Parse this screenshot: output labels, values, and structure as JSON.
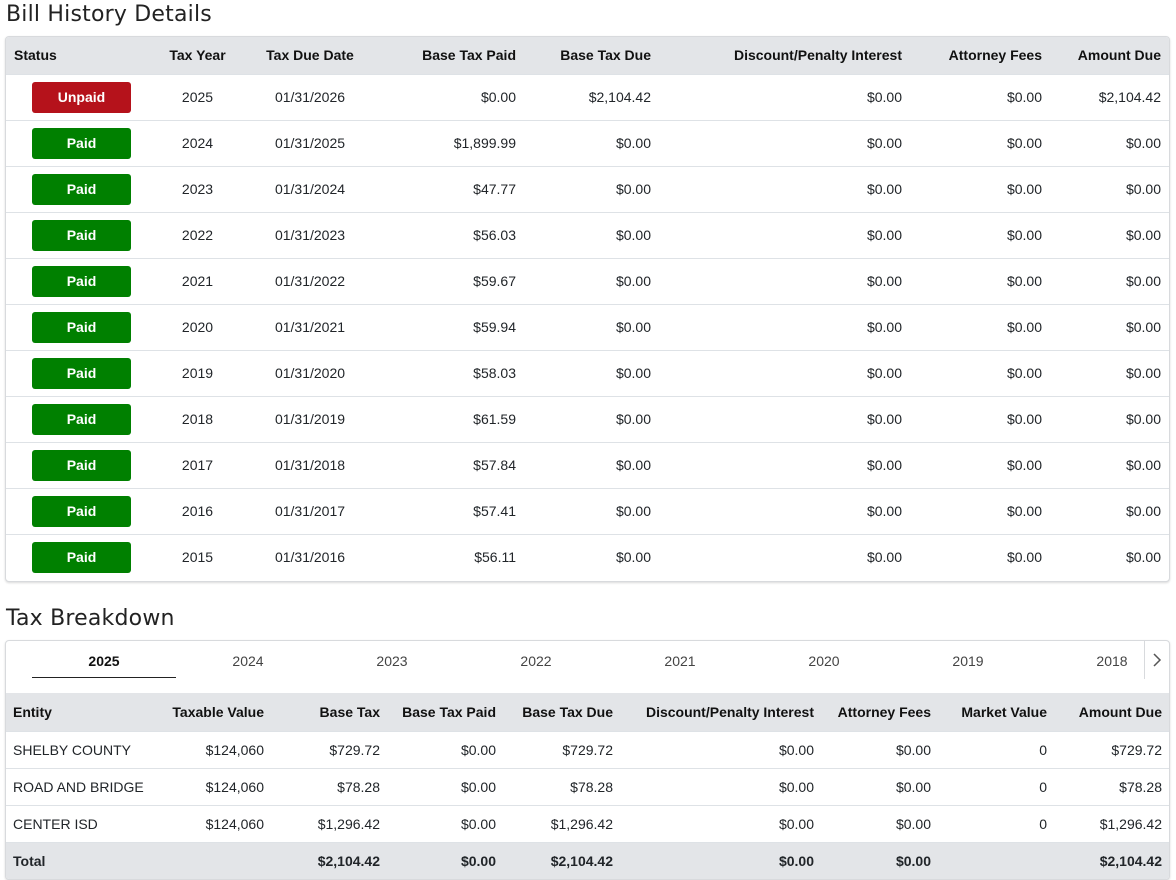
{
  "bill_history": {
    "title": "Bill History Details",
    "columns": [
      "Status",
      "Tax Year",
      "Tax Due Date",
      "Base Tax Paid",
      "Base Tax Due",
      "Discount/Penalty Interest",
      "Attorney Fees",
      "Amount Due"
    ],
    "rows": [
      {
        "status": "Unpaid",
        "state": "unpaid",
        "year": "2025",
        "due_date": "01/31/2026",
        "base_paid": "$0.00",
        "base_due": "$2,104.42",
        "discount": "$0.00",
        "attorney": "$0.00",
        "amount_due": "$2,104.42"
      },
      {
        "status": "Paid",
        "state": "paid",
        "year": "2024",
        "due_date": "01/31/2025",
        "base_paid": "$1,899.99",
        "base_due": "$0.00",
        "discount": "$0.00",
        "attorney": "$0.00",
        "amount_due": "$0.00"
      },
      {
        "status": "Paid",
        "state": "paid",
        "year": "2023",
        "due_date": "01/31/2024",
        "base_paid": "$47.77",
        "base_due": "$0.00",
        "discount": "$0.00",
        "attorney": "$0.00",
        "amount_due": "$0.00"
      },
      {
        "status": "Paid",
        "state": "paid",
        "year": "2022",
        "due_date": "01/31/2023",
        "base_paid": "$56.03",
        "base_due": "$0.00",
        "discount": "$0.00",
        "attorney": "$0.00",
        "amount_due": "$0.00"
      },
      {
        "status": "Paid",
        "state": "paid",
        "year": "2021",
        "due_date": "01/31/2022",
        "base_paid": "$59.67",
        "base_due": "$0.00",
        "discount": "$0.00",
        "attorney": "$0.00",
        "amount_due": "$0.00"
      },
      {
        "status": "Paid",
        "state": "paid",
        "year": "2020",
        "due_date": "01/31/2021",
        "base_paid": "$59.94",
        "base_due": "$0.00",
        "discount": "$0.00",
        "attorney": "$0.00",
        "amount_due": "$0.00"
      },
      {
        "status": "Paid",
        "state": "paid",
        "year": "2019",
        "due_date": "01/31/2020",
        "base_paid": "$58.03",
        "base_due": "$0.00",
        "discount": "$0.00",
        "attorney": "$0.00",
        "amount_due": "$0.00"
      },
      {
        "status": "Paid",
        "state": "paid",
        "year": "2018",
        "due_date": "01/31/2019",
        "base_paid": "$61.59",
        "base_due": "$0.00",
        "discount": "$0.00",
        "attorney": "$0.00",
        "amount_due": "$0.00"
      },
      {
        "status": "Paid",
        "state": "paid",
        "year": "2017",
        "due_date": "01/31/2018",
        "base_paid": "$57.84",
        "base_due": "$0.00",
        "discount": "$0.00",
        "attorney": "$0.00",
        "amount_due": "$0.00"
      },
      {
        "status": "Paid",
        "state": "paid",
        "year": "2016",
        "due_date": "01/31/2017",
        "base_paid": "$57.41",
        "base_due": "$0.00",
        "discount": "$0.00",
        "attorney": "$0.00",
        "amount_due": "$0.00"
      },
      {
        "status": "Paid",
        "state": "paid",
        "year": "2015",
        "due_date": "01/31/2016",
        "base_paid": "$56.11",
        "base_due": "$0.00",
        "discount": "$0.00",
        "attorney": "$0.00",
        "amount_due": "$0.00"
      }
    ]
  },
  "tax_breakdown": {
    "title": "Tax Breakdown",
    "tabs": [
      "2025",
      "2024",
      "2023",
      "2022",
      "2021",
      "2020",
      "2019",
      "2018"
    ],
    "active_tab": "2025",
    "next_icon": "chevron-right-icon",
    "columns": [
      "Entity",
      "Taxable Value",
      "Base Tax",
      "Base Tax Paid",
      "Base Tax Due",
      "Discount/Penalty Interest",
      "Attorney Fees",
      "Market Value",
      "Amount Due"
    ],
    "rows": [
      {
        "entity": "SHELBY COUNTY",
        "taxable_value": "$124,060",
        "base_tax": "$729.72",
        "base_paid": "$0.00",
        "base_due": "$729.72",
        "discount": "$0.00",
        "attorney": "$0.00",
        "market_value": "0",
        "amount_due": "$729.72"
      },
      {
        "entity": "ROAD AND BRIDGE",
        "taxable_value": "$124,060",
        "base_tax": "$78.28",
        "base_paid": "$0.00",
        "base_due": "$78.28",
        "discount": "$0.00",
        "attorney": "$0.00",
        "market_value": "0",
        "amount_due": "$78.28"
      },
      {
        "entity": "CENTER ISD",
        "taxable_value": "$124,060",
        "base_tax": "$1,296.42",
        "base_paid": "$0.00",
        "base_due": "$1,296.42",
        "discount": "$0.00",
        "attorney": "$0.00",
        "market_value": "0",
        "amount_due": "$1,296.42"
      }
    ],
    "total": {
      "label": "Total",
      "taxable_value": "",
      "base_tax": "$2,104.42",
      "base_paid": "$0.00",
      "base_due": "$2,104.42",
      "discount": "$0.00",
      "attorney": "$0.00",
      "market_value": "",
      "amount_due": "$2,104.42"
    }
  },
  "colors": {
    "unpaid": "#b5121b",
    "paid": "#008000",
    "header_bg": "#e3e5e8"
  }
}
